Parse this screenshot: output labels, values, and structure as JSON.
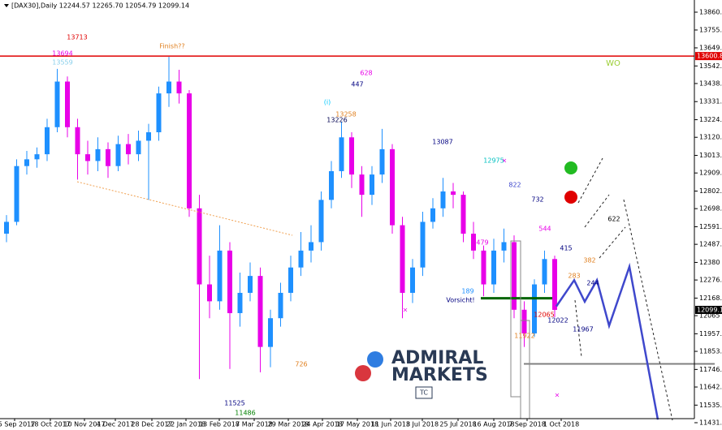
{
  "chart_data": {
    "type": "candlestick",
    "title": "[DAX30],Daily  12244.57 12265.70 12054.79 12099.14",
    "bull_color": "#1e90ff",
    "bear_color": "#e800e8",
    "xlim": [
      -0.64,
      67.76
    ],
    "ylim": [
      11403,
      13932.5
    ],
    "xticks": [
      {
        "value": 0.8,
        "label": "25 Sep 2017"
      },
      {
        "value": 4.32,
        "label": "18 Oct 2017"
      },
      {
        "value": 7.68,
        "label": "10 Nov 2017"
      },
      {
        "value": 10.72,
        "label": "4 Dec 2017"
      },
      {
        "value": 14.32,
        "label": "28 Dec 2017"
      },
      {
        "value": 17.68,
        "label": "22 Jan 2018"
      },
      {
        "value": 20.96,
        "label": "13 Feb 2018"
      },
      {
        "value": 24.4,
        "label": "7 Mar 2018"
      },
      {
        "value": 27.76,
        "label": "29 Mar 2018"
      },
      {
        "value": 31.12,
        "label": "24 Apr 2018"
      },
      {
        "value": 34.56,
        "label": "17 May 2018"
      },
      {
        "value": 37.84,
        "label": "11 Jun 2018"
      },
      {
        "value": 40.96,
        "label": "3 Jul 2018"
      },
      {
        "value": 44.48,
        "label": "25 Jul 2018"
      },
      {
        "value": 48,
        "label": "16 Aug 2018"
      },
      {
        "value": 51.28,
        "label": "7 Sep 2018"
      },
      {
        "value": 54.64,
        "label": "1 Oct 2018"
      }
    ],
    "yticks": [
      {
        "value": 13860.5,
        "label": "13860.50"
      },
      {
        "value": 13755.05,
        "label": "13755.05"
      },
      {
        "value": 13649.4,
        "label": "13649.40"
      },
      {
        "value": 13542.35,
        "label": "13542.35"
      },
      {
        "value": 13438.4,
        "label": "13438.40"
      },
      {
        "value": 13331.35,
        "label": "13331.35"
      },
      {
        "value": 13224.3,
        "label": "13224.30"
      },
      {
        "value": 13120.25,
        "label": "13120.25"
      },
      {
        "value": 13013.15,
        "label": "13013.15"
      },
      {
        "value": 12909.2,
        "label": "12909.20"
      },
      {
        "value": 12802.1,
        "label": "12802.10"
      },
      {
        "value": 12698.15,
        "label": "12698.15"
      },
      {
        "value": 12591.05,
        "label": "12591.05"
      },
      {
        "value": 12487.1,
        "label": "12487.10"
      },
      12380,
      {
        "value": 12276.05,
        "label": "12276.05"
      },
      {
        "value": 12168.95,
        "label": "12168.95"
      },
      12065,
      {
        "value": 11957.9,
        "label": "11957.90"
      },
      {
        "value": 11853.95,
        "label": "11853.95"
      },
      {
        "value": 11746.85,
        "label": "11746.85"
      },
      {
        "value": 11642.9,
        "label": "11642.90"
      },
      {
        "value": 11535.8,
        "label": "11535.80"
      },
      {
        "value": 11431.85,
        "label": "11431.85"
      }
    ],
    "open": [
      12550,
      12620,
      12950,
      12990,
      13020,
      13180,
      13450,
      13180,
      13020,
      12980,
      13050,
      12950,
      13080,
      13020,
      13100,
      13150,
      13380,
      13450,
      13380,
      12700,
      12250,
      12150,
      12450,
      12080,
      12200,
      12300,
      11880,
      12050,
      12200,
      12350,
      12450,
      12500,
      12750,
      12920,
      13120,
      12900,
      12780,
      12900,
      13050,
      12600,
      12200,
      12350,
      12620,
      12700,
      12800,
      12780,
      12550,
      12450,
      12250,
      12450,
      12500,
      12100,
      11960,
      12250,
      12400
    ],
    "high": [
      12660,
      12990,
      13040,
      13060,
      13230,
      13525,
      13480,
      13230,
      13100,
      13120,
      13090,
      13130,
      13140,
      13160,
      13200,
      13420,
      13596,
      13520,
      13400,
      12780,
      12420,
      12600,
      12500,
      12320,
      12380,
      12350,
      12100,
      12260,
      12420,
      12560,
      12600,
      12800,
      12980,
      13210,
      13150,
      12950,
      12950,
      13170,
      13080,
      12650,
      12400,
      12680,
      12760,
      12880,
      12850,
      12800,
      12620,
      12480,
      12520,
      12580,
      12540,
      12150,
      12280,
      12450,
      12420
    ],
    "low": [
      12500,
      12600,
      12900,
      12940,
      12980,
      13150,
      13120,
      12870,
      12900,
      12920,
      12880,
      12920,
      12960,
      12980,
      12750,
      13100,
      13300,
      13320,
      12650,
      11690,
      12050,
      12100,
      11750,
      12000,
      12150,
      11730,
      11760,
      12000,
      12150,
      12300,
      12380,
      12450,
      12700,
      12880,
      12820,
      12650,
      12720,
      12850,
      12550,
      12050,
      12140,
      12300,
      12580,
      12650,
      12700,
      12500,
      12400,
      12180,
      12200,
      12380,
      12050,
      11880,
      11940,
      12200,
      12055
    ],
    "close": [
      12620,
      12950,
      12990,
      13020,
      13180,
      13450,
      13180,
      13020,
      12980,
      13050,
      12950,
      13080,
      13020,
      13100,
      13150,
      13380,
      13450,
      13380,
      12700,
      12250,
      12150,
      12450,
      12080,
      12200,
      12300,
      11880,
      12050,
      12200,
      12350,
      12450,
      12500,
      12750,
      12920,
      13120,
      12900,
      12780,
      12900,
      13050,
      12600,
      12200,
      12350,
      12620,
      12700,
      12800,
      12780,
      12550,
      12450,
      12250,
      12450,
      12500,
      12100,
      11960,
      12250,
      12400,
      12099.14
    ],
    "levels": [
      {
        "value": 13600.8,
        "label": "13600.80",
        "color": "#e00000"
      },
      {
        "value": 12099.14,
        "label": "12099.14",
        "color": "#000000"
      }
    ],
    "hlines": [
      {
        "value": 12168,
        "color": "#006400"
      },
      {
        "value": 11780,
        "color": "#808080"
      }
    ],
    "projection": {
      "color": "#3f48cc",
      "x": [
        54.16,
        55.92,
        56.96,
        58.16,
        59.36,
        61.36,
        64.16
      ],
      "values": [
        12120,
        12275,
        12148,
        12275,
        12005,
        12355,
        11450
      ]
    },
    "annotations": [
      {
        "text": "13713",
        "color": "#e00000"
      },
      {
        "text": "Finish??",
        "color": "#e08020"
      },
      {
        "text": "13694",
        "color": "#e800e8"
      },
      {
        "text": "13559",
        "color": "#87ceeb"
      },
      {
        "text": "628",
        "color": "#e800e8"
      },
      {
        "text": "447",
        "color": "#000080"
      },
      {
        "text": "(i)",
        "color": "#00c8ff"
      },
      {
        "text": "13258",
        "color": "#e08020"
      },
      {
        "text": "13226",
        "color": "#000050"
      },
      {
        "text": "13087",
        "color": "#000080"
      },
      {
        "text": "12975",
        "color": "#00c0c0"
      },
      {
        "text": "822",
        "color": "#3f48cc"
      },
      {
        "text": "732",
        "color": "#000080"
      },
      {
        "text": "544",
        "color": "#e800e8"
      },
      {
        "text": "622",
        "color": "#000000"
      },
      {
        "text": "479",
        "color": "#e800e8"
      },
      {
        "text": "415",
        "color": "#000080"
      },
      {
        "text": "382",
        "color": "#e08020"
      },
      {
        "text": "283",
        "color": "#e08020"
      },
      {
        "text": "244",
        "color": "#000080"
      },
      {
        "text": "189",
        "color": "#1e90ff"
      },
      {
        "text": "Vorsicht!",
        "color": "#000080"
      },
      {
        "text": "12065",
        "color": "#e00000"
      },
      {
        "text": "12022",
        "color": "#000080"
      },
      {
        "text": "11967",
        "color": "#000080"
      },
      {
        "text": "11922",
        "color": "#e08020"
      },
      {
        "text": "726",
        "color": "#e08020"
      },
      {
        "text": "11525",
        "color": "#000080"
      },
      {
        "text": "11486",
        "color": "#008000"
      },
      {
        "text": "WO",
        "color": "#9acd32"
      }
    ],
    "logo": {
      "line1": "ADMIRAL",
      "line2": "MARKETS",
      "badge": "TC"
    }
  }
}
